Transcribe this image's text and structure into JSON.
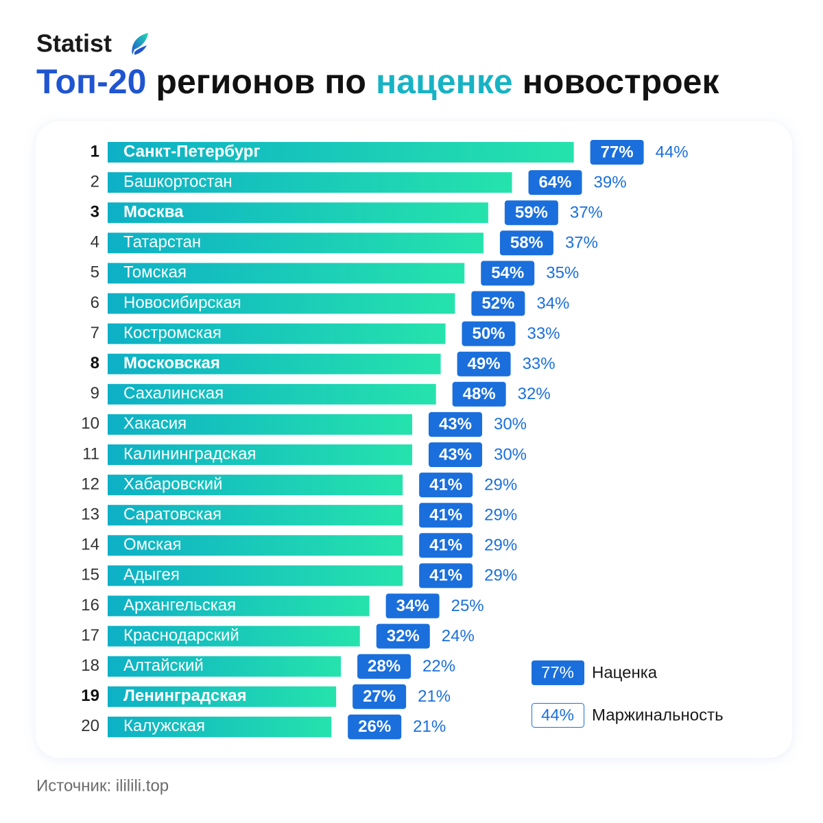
{
  "chart_data": {
    "type": "bar",
    "brand": "Statist",
    "title": [
      {
        "text": "Топ-20",
        "color": "#1f55d1"
      },
      {
        "text": "регионов по",
        "color": "#111111"
      },
      {
        "text": "наценке",
        "color": "#17b3c4"
      },
      {
        "text": "новостроек",
        "color": "#111111"
      }
    ],
    "ranks": [
      1,
      2,
      3,
      4,
      5,
      6,
      7,
      8,
      9,
      10,
      11,
      12,
      13,
      14,
      15,
      16,
      17,
      18,
      19,
      20
    ],
    "categories": [
      "Санкт-Петербург",
      "Башкортостан",
      "Москва",
      "Татарстан",
      "Томская",
      "Новосибирская",
      "Костромская",
      "Московская",
      "Сахалинская",
      "Хакасия",
      "Калининградская",
      "Хабаровский",
      "Саратовская",
      "Омская",
      "Адыгея",
      "Архангельская",
      "Краснодарский",
      "Алтайский",
      "Ленинградская",
      "Калужская"
    ],
    "bold_rows": [
      0,
      2,
      7,
      18
    ],
    "bar_colors": [
      "#0db0c6",
      "#25e3ac"
    ],
    "series": [
      {
        "name": "Наценка",
        "color": "#1a6fdc",
        "values": [
          77,
          64,
          59,
          58,
          54,
          52,
          50,
          49,
          48,
          43,
          43,
          41,
          41,
          41,
          41,
          34,
          32,
          28,
          27,
          26
        ],
        "value_labels": [
          "77%",
          "64%",
          "59%",
          "58%",
          "54%",
          "52%",
          "50%",
          "49%",
          "48%",
          "43%",
          "43%",
          "41%",
          "41%",
          "41%",
          "41%",
          "34%",
          "32%",
          "28%",
          "27%",
          "26%"
        ]
      },
      {
        "name": "Маржинальность",
        "color": "#1a6fdc",
        "values": [
          44,
          39,
          37,
          37,
          35,
          34,
          33,
          33,
          32,
          30,
          30,
          29,
          29,
          29,
          29,
          25,
          24,
          22,
          21,
          21
        ],
        "value_labels": [
          "44%",
          "39%",
          "37%",
          "37%",
          "35%",
          "34%",
          "33%",
          "33%",
          "32%",
          "30%",
          "30%",
          "29%",
          "29%",
          "29%",
          "29%",
          "25%",
          "24%",
          "22%",
          "21%",
          "21%"
        ]
      }
    ],
    "source": "Источник: ililili.top"
  }
}
